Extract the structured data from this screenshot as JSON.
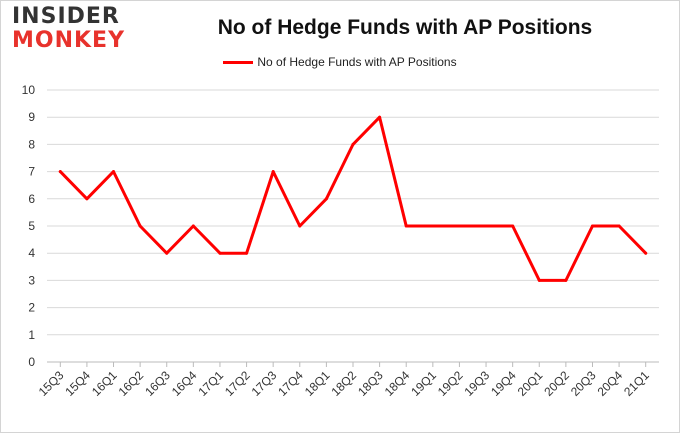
{
  "brand": {
    "line1": "INSIDER",
    "line2": "MONKEY"
  },
  "chart_data": {
    "type": "line",
    "title": "No of Hedge Funds with AP Positions",
    "xlabel": "",
    "ylabel": "",
    "ylim": [
      0,
      10
    ],
    "yticks": [
      0,
      1,
      2,
      3,
      4,
      5,
      6,
      7,
      8,
      9,
      10
    ],
    "grid": true,
    "legend_position": "top-center",
    "categories": [
      "15Q3",
      "15Q4",
      "16Q1",
      "16Q2",
      "16Q3",
      "16Q4",
      "17Q1",
      "17Q2",
      "17Q3",
      "17Q4",
      "18Q1",
      "18Q2",
      "18Q3",
      "18Q4",
      "19Q1",
      "19Q2",
      "19Q3",
      "19Q4",
      "20Q1",
      "20Q2",
      "20Q3",
      "20Q4",
      "21Q1"
    ],
    "series": [
      {
        "name": "No of Hedge Funds with AP Positions",
        "color": "#ff0000",
        "values": [
          7,
          6,
          7,
          5,
          4,
          5,
          4,
          4,
          7,
          5,
          6,
          8,
          9,
          5,
          5,
          5,
          5,
          5,
          3,
          3,
          5,
          5,
          4
        ]
      }
    ]
  }
}
